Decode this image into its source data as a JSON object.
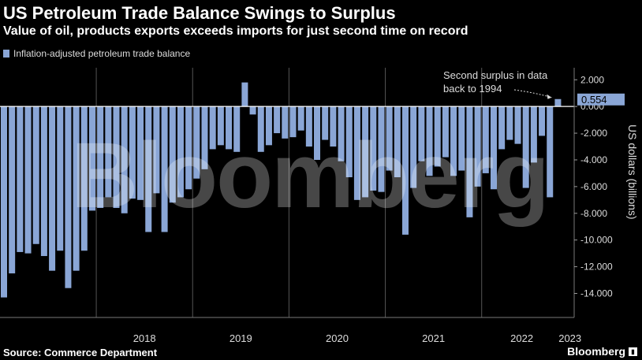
{
  "title": "US Petroleum Trade Balance Swings to Surplus",
  "subtitle": "Value of oil, products exports exceeds imports for just second time on record",
  "legend": {
    "label": "Inflation-adjusted petroleum trade balance",
    "color": "#8aa6d6"
  },
  "watermark": "Bloomberg",
  "source": "Source: Commerce Department",
  "brand": {
    "name": "Bloomberg",
    "icon": "bloomberg-terminal-icon"
  },
  "chart_data": {
    "type": "bar",
    "ylabel": "US dollars (billions)",
    "ylim": [
      -15.8,
      2.9
    ],
    "yticks": [
      2,
      0,
      -2,
      -4,
      -6,
      -8,
      -10,
      -12,
      -14
    ],
    "ytick_labels": [
      "2.000",
      "0.000",
      "-2.000",
      "-4.000",
      "-6.000",
      "-8.000",
      "-10.000",
      "-12.000",
      "-14.000"
    ],
    "year_labels": [
      "2018",
      "2019",
      "2020",
      "2021",
      "2022",
      "2023"
    ],
    "start": "2017-01",
    "values": [
      -14.3,
      -12.5,
      -10.9,
      -11.0,
      -10.3,
      -11.2,
      -12.3,
      -10.8,
      -13.6,
      -12.3,
      -10.8,
      -7.8,
      -7.6,
      -6.8,
      -7.6,
      -8.0,
      -6.9,
      -7.0,
      -9.4,
      -6.5,
      -9.4,
      -7.2,
      -6.8,
      -6.2,
      -5.4,
      -4.7,
      -3.2,
      -2.9,
      -3.2,
      -3.4,
      1.8,
      -0.6,
      -3.4,
      -2.9,
      -2.0,
      -2.4,
      -2.3,
      -1.8,
      -3.0,
      -4.0,
      -2.5,
      -3.0,
      -4.1,
      -5.3,
      -7.0,
      -6.8,
      -6.3,
      -6.4,
      -4.8,
      -5.3,
      -9.6,
      -6.1,
      -4.1,
      -5.2,
      -4.5,
      -3.8,
      -5.2,
      -4.8,
      -8.3,
      -6.0,
      -5.0,
      -6.2,
      -3.2,
      -2.5,
      -2.8,
      -6.1,
      -4.2,
      -2.2,
      -6.8,
      0.554
    ],
    "annotation": {
      "text_lines": [
        "Second surplus in data",
        "back to 1994"
      ]
    },
    "last_value_label": "0.554"
  }
}
